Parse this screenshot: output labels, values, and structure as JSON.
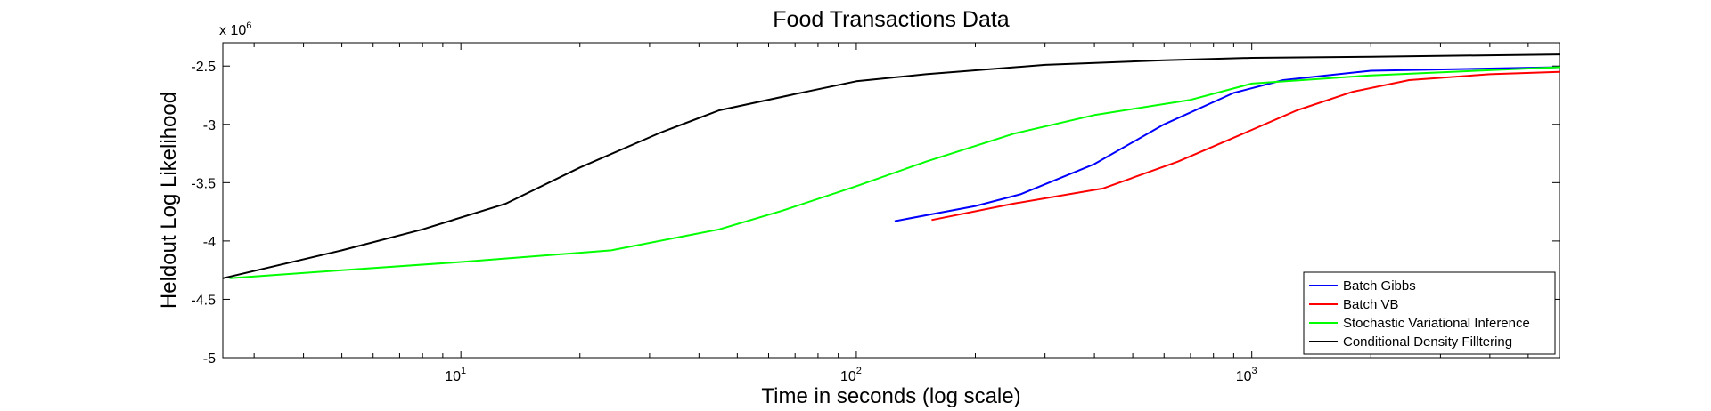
{
  "chart_data": {
    "type": "line",
    "title": "Food Transactions Data",
    "xlabel": "Time in seconds (log scale)",
    "ylabel": "Heldout Log Likelihood",
    "x_scale": "log",
    "xlim": [
      2.5,
      6000
    ],
    "ylim": [
      -5000000,
      -2300000
    ],
    "y_multiplier_label": "x 10",
    "y_multiplier_exponent": "6",
    "x_ticks": [
      {
        "value": 10,
        "base": "10",
        "exp": "1"
      },
      {
        "value": 100,
        "base": "10",
        "exp": "2"
      },
      {
        "value": 1000,
        "base": "10",
        "exp": "3"
      }
    ],
    "y_ticks": [
      {
        "value": -2500000,
        "label": "-2.5"
      },
      {
        "value": -3000000,
        "label": "-3"
      },
      {
        "value": -3500000,
        "label": "-3.5"
      },
      {
        "value": -4000000,
        "label": "-4"
      },
      {
        "value": -4500000,
        "label": "-4.5"
      },
      {
        "value": -5000000,
        "label": "-5"
      }
    ],
    "grid": false,
    "legend_position": "bottom-right",
    "series": [
      {
        "name": "Batch Gibbs",
        "color": "#0000ff",
        "points": [
          [
            125,
            -3830000
          ],
          [
            200,
            -3700000
          ],
          [
            260,
            -3600000
          ],
          [
            400,
            -3340000
          ],
          [
            600,
            -3000000
          ],
          [
            900,
            -2730000
          ],
          [
            1200,
            -2620000
          ],
          [
            2000,
            -2540000
          ],
          [
            6000,
            -2510000
          ]
        ]
      },
      {
        "name": "Batch VB",
        "color": "#ff0000",
        "points": [
          [
            155,
            -3820000
          ],
          [
            250,
            -3680000
          ],
          [
            420,
            -3550000
          ],
          [
            650,
            -3320000
          ],
          [
            950,
            -3080000
          ],
          [
            1300,
            -2880000
          ],
          [
            1800,
            -2720000
          ],
          [
            2500,
            -2620000
          ],
          [
            4000,
            -2570000
          ],
          [
            6000,
            -2550000
          ]
        ]
      },
      {
        "name": "Stochastic Variational Inference",
        "color": "#00ff00",
        "points": [
          [
            2.6,
            -4320000
          ],
          [
            5,
            -4250000
          ],
          [
            10,
            -4180000
          ],
          [
            24,
            -4080000
          ],
          [
            45,
            -3900000
          ],
          [
            65,
            -3740000
          ],
          [
            100,
            -3530000
          ],
          [
            150,
            -3320000
          ],
          [
            250,
            -3080000
          ],
          [
            400,
            -2920000
          ],
          [
            700,
            -2790000
          ],
          [
            1000,
            -2650000
          ],
          [
            2000,
            -2580000
          ],
          [
            6000,
            -2510000
          ]
        ]
      },
      {
        "name": "Conditional Density Filltering",
        "color": "#000000",
        "points": [
          [
            2.5,
            -4320000
          ],
          [
            5,
            -4080000
          ],
          [
            8,
            -3900000
          ],
          [
            13,
            -3680000
          ],
          [
            20,
            -3370000
          ],
          [
            32,
            -3070000
          ],
          [
            45,
            -2880000
          ],
          [
            70,
            -2740000
          ],
          [
            100,
            -2630000
          ],
          [
            150,
            -2570000
          ],
          [
            300,
            -2490000
          ],
          [
            600,
            -2450000
          ],
          [
            1000,
            -2430000
          ],
          [
            2000,
            -2420000
          ],
          [
            6000,
            -2400000
          ]
        ]
      }
    ]
  }
}
